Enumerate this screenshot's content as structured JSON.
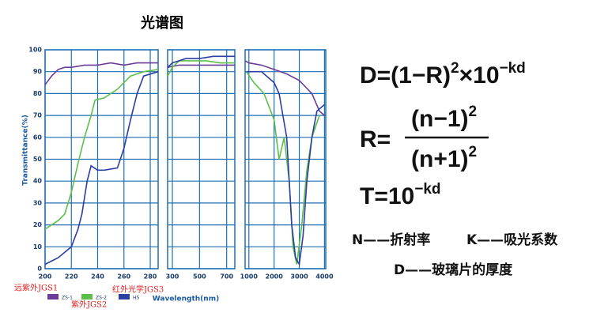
{
  "chart_data": {
    "type": "line",
    "title": "光谱图",
    "y_label": "Transmittance(%)",
    "x_label": "Wavelength(nm)",
    "ylim": [
      0,
      100
    ],
    "yticks": [
      0,
      10,
      20,
      30,
      40,
      50,
      60,
      70,
      80,
      90,
      100
    ],
    "grid": true,
    "series": [
      {
        "name": "ZS-1",
        "color": "#6a3d9a"
      },
      {
        "name": "ZS-2",
        "color": "#5cbf4a"
      },
      {
        "name": "HS",
        "color": "#2a3f9f"
      }
    ],
    "annotations": [
      {
        "text": "远紫外JGS1",
        "color": "#e02020"
      },
      {
        "text": "紫外JGS2",
        "color": "#e02020"
      },
      {
        "text": "红外光学JGS3",
        "color": "#e02020"
      }
    ],
    "panels": [
      {
        "xlim": [
          200,
          286
        ],
        "xticks": [
          200,
          220,
          240,
          260,
          280
        ],
        "lines": [
          {
            "x": [
              200,
              205,
              210,
              215,
              220,
              230,
              240,
              250,
              260,
              270,
              280,
              286
            ],
            "values": [
              84,
              88,
              91,
              92,
              92,
              93,
              93,
              94,
              93,
              94,
              94,
              94
            ]
          },
          {
            "x": [
              200,
              205,
              210,
              215,
              220,
              225,
              230,
              235,
              238,
              245,
              255,
              265,
              275,
              286
            ],
            "values": [
              18,
              20,
              22,
              25,
              35,
              48,
              60,
              70,
              77,
              78,
              82,
              88,
              90,
              91
            ]
          },
          {
            "x": [
              200,
              210,
              220,
              225,
              228,
              232,
              235,
              240,
              245,
              255,
              260,
              265,
              270,
              275,
              286
            ],
            "values": [
              2,
              5,
              10,
              18,
              25,
              40,
              47,
              45,
              45,
              46,
              55,
              68,
              80,
              88,
              90
            ]
          }
        ]
      },
      {
        "xlim": [
          265,
          760
        ],
        "xticks": [
          300,
          500,
          700
        ],
        "lines": [
          {
            "x": [
              265,
              350,
              450,
              550,
              650,
              760
            ],
            "values": [
              92,
              93,
              93,
              93,
              93,
              93
            ]
          },
          {
            "x": [
              265,
              300,
              350,
              450,
              550,
              650,
              760
            ],
            "values": [
              88,
              92,
              95,
              95,
              95,
              94,
              94
            ]
          },
          {
            "x": [
              265,
              300,
              400,
              500,
              600,
              700,
              760
            ],
            "values": [
              92,
              94,
              96,
              96,
              97,
              97,
              97
            ]
          }
        ]
      },
      {
        "xlim": [
          850,
          4050
        ],
        "xticks": [
          1000,
          2000,
          3000,
          4000
        ],
        "lines": [
          {
            "x": [
              850,
              1000,
              1500,
              2000,
              2500,
              3000,
              3500,
              3800,
              4000
            ],
            "values": [
              95,
              94,
              93,
              91,
              89,
              86,
              80,
              72,
              70
            ]
          },
          {
            "x": [
              900,
              1200,
              1600,
              2000,
              2200,
              2400,
              2600,
              2750,
              2900,
              3100,
              3300,
              3500,
              3800
            ],
            "values": [
              90,
              85,
              80,
              68,
              50,
              60,
              40,
              10,
              2,
              20,
              45,
              60,
              70
            ]
          },
          {
            "x": [
              900,
              1500,
              2000,
              2200,
              2500,
              2700,
              2850,
              3000,
              3150,
              3300,
              3500,
              3700,
              4000
            ],
            "values": [
              90,
              90,
              85,
              80,
              60,
              20,
              5,
              2,
              15,
              40,
              60,
              72,
              75
            ]
          }
        ]
      }
    ]
  },
  "formulas": {
    "d": [
      "D=(1−R)",
      "2",
      "×10",
      "−kd"
    ],
    "r_lhs": "R=",
    "r_num": [
      "(n−1)",
      "2"
    ],
    "r_den": [
      "(n+1)",
      "2"
    ],
    "t": [
      "T=10",
      "−kd"
    ]
  },
  "notes": [
    "N——折射率",
    "K——吸光系数",
    "D——玻璃片的厚度"
  ]
}
